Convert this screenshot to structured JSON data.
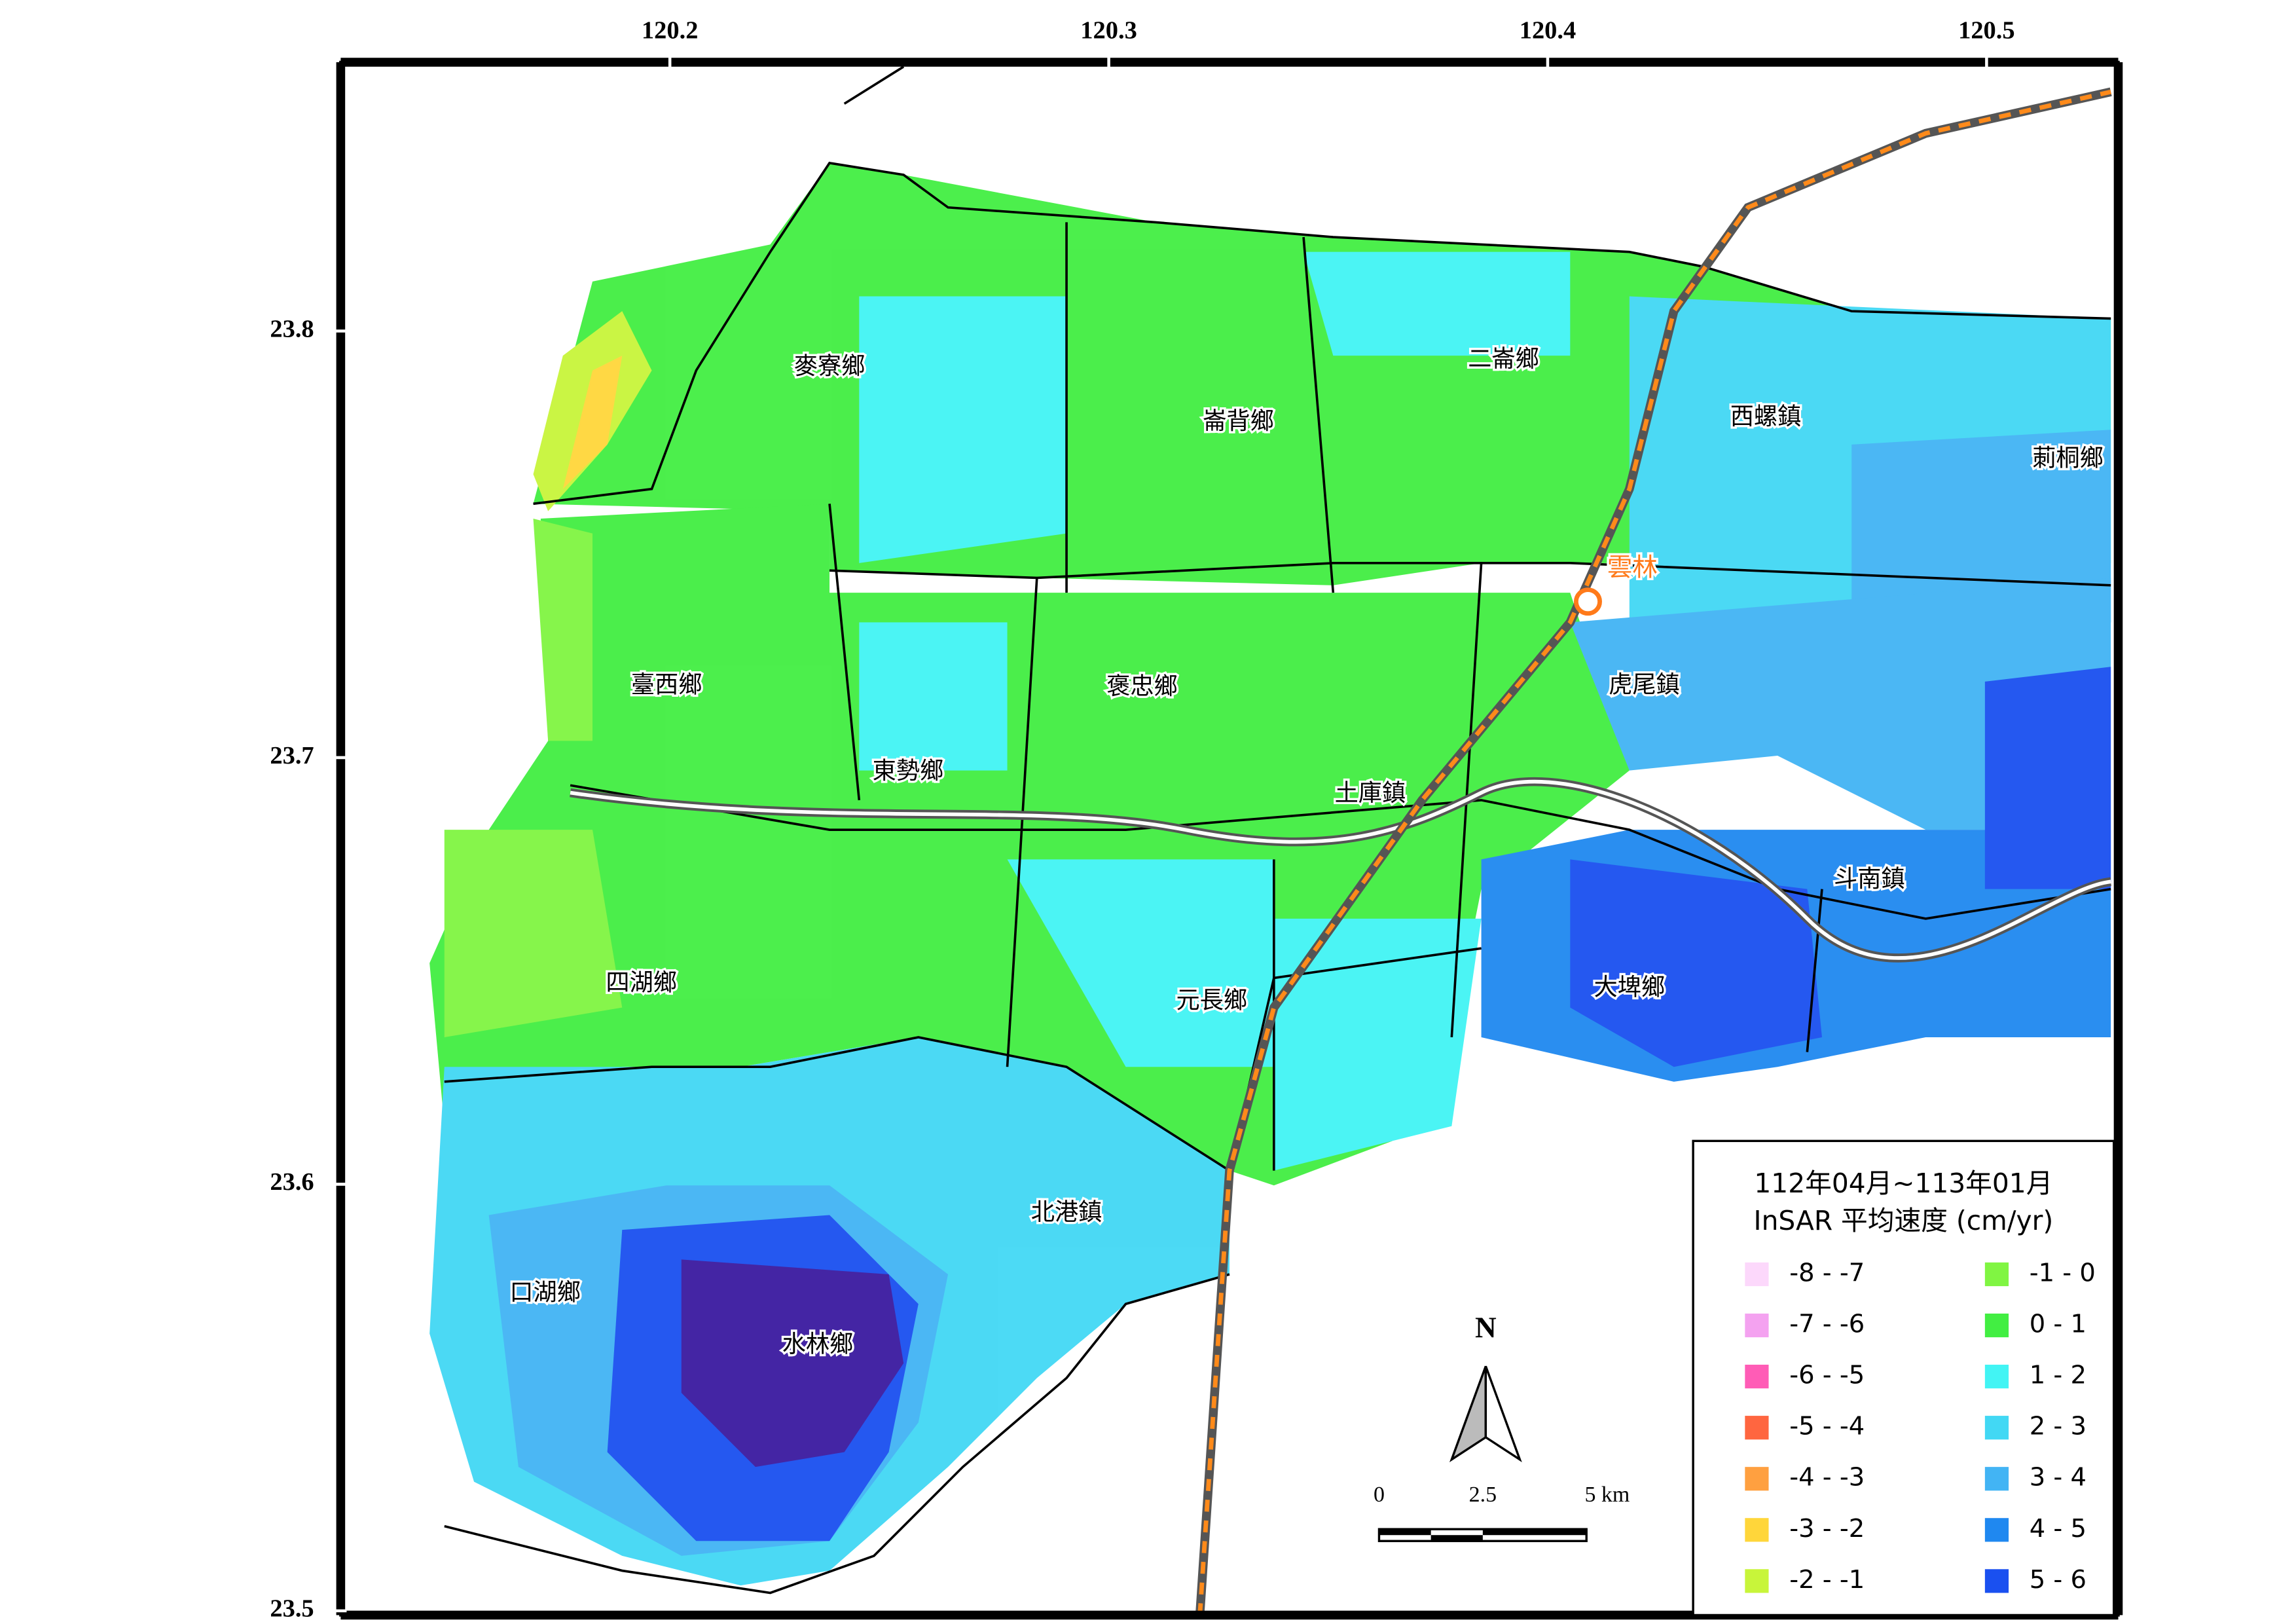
{
  "map": {
    "xlim": [
      120.125,
      120.53
    ],
    "ylim": [
      23.499,
      23.863
    ],
    "xticks": [
      120.2,
      120.3,
      120.4,
      120.5
    ],
    "yticks": [
      23.8,
      23.7,
      23.6,
      23.5
    ],
    "towns": [
      "麥寮鄉",
      "崙背鄉",
      "二崙鄉",
      "西螺鎮",
      "莿桐鄉",
      "臺西鄉",
      "褒忠鄉",
      "虎尾鎮",
      "東勢鄉",
      "土庫鎮",
      "斗南鎮",
      "四湖鄉",
      "元長鄉",
      "大埤鄉",
      "北港鎮",
      "口湖鄉",
      "水林鄉"
    ],
    "station": "雲林",
    "north": "N",
    "scale_labels": [
      "0",
      "2.5",
      "5 km"
    ],
    "legend": {
      "title": [
        "112年04月~113年01月",
        "InSAR 平均速度 (cm/yr)"
      ],
      "entries": [
        {
          "label": "-8 - -7",
          "color": "#fcd8fb"
        },
        {
          "label": "-7 - -6",
          "color": "#f4a2f0"
        },
        {
          "label": "-6 - -5",
          "color": "#ff5cb6"
        },
        {
          "label": "-5 - -4",
          "color": "#ff6640"
        },
        {
          "label": "-4 - -3",
          "color": "#ffa040"
        },
        {
          "label": "-3 - -2",
          "color": "#ffd63a"
        },
        {
          "label": "-2 - -1",
          "color": "#c8f53a"
        },
        {
          "label": "-1 - 0",
          "color": "#80f542"
        },
        {
          "label": "0 - 1",
          "color": "#42ee42"
        },
        {
          "label": "1 - 2",
          "color": "#42f4f4"
        },
        {
          "label": "2 - 3",
          "color": "#42d8f4"
        },
        {
          "label": "3 - 4",
          "color": "#42b4f4"
        },
        {
          "label": "4 - 5",
          "color": "#1f88f0"
        },
        {
          "label": "5 - 6",
          "color": "#1a50f0"
        }
      ]
    }
  }
}
